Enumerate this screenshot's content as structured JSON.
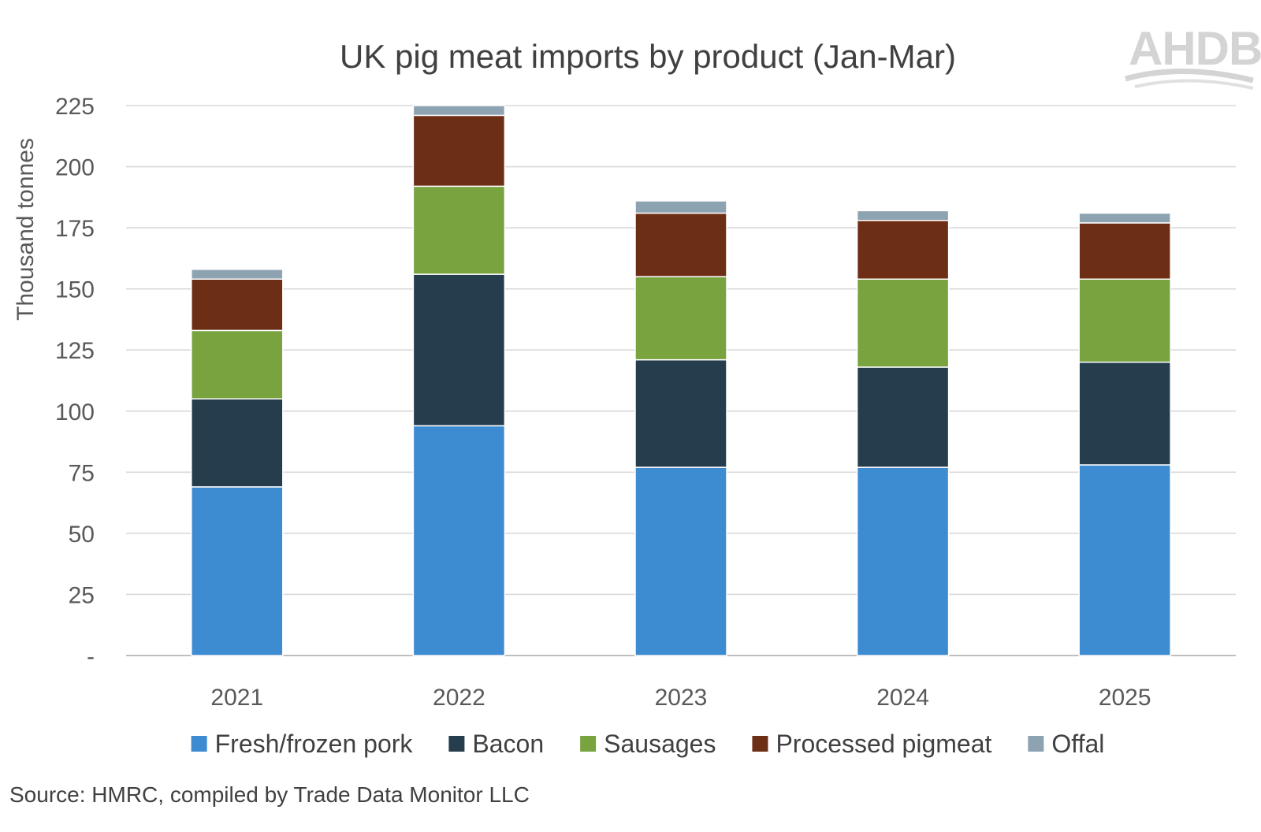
{
  "logo": {
    "text": "AHDB"
  },
  "source": "Source: HMRC, compiled by Trade Data Monitor LLC",
  "chart_data": {
    "type": "bar",
    "stacked": true,
    "title": "UK pig meat imports by product (Jan-Mar)",
    "xlabel": "",
    "ylabel": "Thousand tonnes",
    "ylim": [
      0,
      225
    ],
    "yticks": [
      0,
      25,
      50,
      75,
      100,
      125,
      150,
      175,
      200,
      225
    ],
    "ytick_labels": [
      "-",
      "25",
      "50",
      "75",
      "100",
      "125",
      "150",
      "175",
      "200",
      "225"
    ],
    "grid": true,
    "legend_position": "bottom",
    "categories": [
      "2021",
      "2022",
      "2023",
      "2024",
      "2025"
    ],
    "series": [
      {
        "name": "Fresh/frozen pork",
        "color": "#3d8bd1",
        "values": [
          69,
          94,
          77,
          77,
          78
        ]
      },
      {
        "name": "Bacon",
        "color": "#263d4d",
        "values": [
          36,
          62,
          44,
          41,
          42
        ]
      },
      {
        "name": "Sausages",
        "color": "#78a33f",
        "values": [
          28,
          36,
          34,
          36,
          34
        ]
      },
      {
        "name": "Processed pigmeat",
        "color": "#6d2e16",
        "values": [
          21,
          29,
          26,
          24,
          23
        ]
      },
      {
        "name": "Offal",
        "color": "#8ea3b2",
        "values": [
          4,
          4,
          5,
          4,
          4
        ]
      }
    ]
  }
}
